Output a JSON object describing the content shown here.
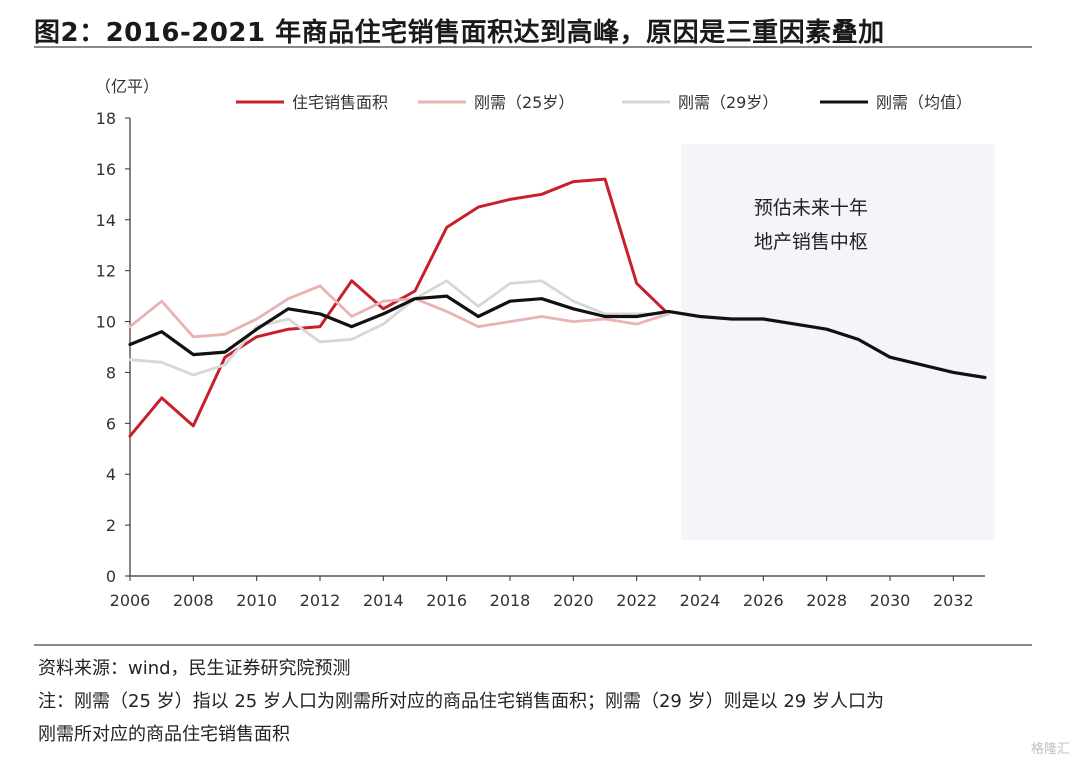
{
  "title": "图2：2016-2021 年商品住宅销售面积达到高峰，原因是三重因素叠加",
  "chart_data": {
    "type": "line",
    "unit_label": "（亿平）",
    "ylim": [
      0,
      18
    ],
    "yticks": [
      0,
      2,
      4,
      6,
      8,
      10,
      12,
      14,
      16,
      18
    ],
    "xlim": [
      2006,
      2033
    ],
    "xticks": [
      2006,
      2008,
      2010,
      2012,
      2014,
      2016,
      2018,
      2020,
      2022,
      2024,
      2026,
      2028,
      2030,
      2032
    ],
    "grid": false,
    "legend_position": "top",
    "forecast_region": {
      "x_start": 2023.4,
      "x_end": 2033.3,
      "label_lines": [
        "预估未来十年",
        "地产销售中枢"
      ],
      "color": "#f3f5f8"
    },
    "series": [
      {
        "name": "住宅销售面积",
        "color": "#c8202a",
        "x": [
          2006,
          2007,
          2008,
          2009,
          2010,
          2011,
          2012,
          2013,
          2014,
          2015,
          2016,
          2017,
          2018,
          2019,
          2020,
          2021,
          2022,
          2023
        ],
        "y": [
          5.5,
          7.0,
          5.9,
          8.6,
          9.4,
          9.7,
          9.8,
          11.6,
          10.5,
          11.2,
          13.7,
          14.5,
          14.8,
          15.0,
          15.5,
          15.6,
          11.5,
          10.3
        ]
      },
      {
        "name": "刚需（25岁）",
        "color": "#ebb2b2",
        "x": [
          2006,
          2007,
          2008,
          2009,
          2010,
          2011,
          2012,
          2013,
          2014,
          2015,
          2016,
          2017,
          2018,
          2019,
          2020,
          2021,
          2022,
          2023
        ],
        "y": [
          9.8,
          10.8,
          9.4,
          9.5,
          10.1,
          10.9,
          11.4,
          10.2,
          10.8,
          10.9,
          10.4,
          9.8,
          10.0,
          10.2,
          10.0,
          10.1,
          9.9,
          10.3
        ]
      },
      {
        "name": "刚需（29岁）",
        "color": "#d7d7d7",
        "x": [
          2006,
          2007,
          2008,
          2009,
          2010,
          2011,
          2012,
          2013,
          2014,
          2015,
          2016,
          2017,
          2018,
          2019,
          2020,
          2021,
          2022,
          2023
        ],
        "y": [
          8.5,
          8.4,
          7.9,
          8.3,
          9.8,
          10.1,
          9.2,
          9.3,
          9.9,
          10.9,
          11.6,
          10.6,
          11.5,
          11.6,
          10.8,
          10.3,
          10.3,
          10.3
        ]
      },
      {
        "name": "刚需（均值）",
        "color": "#111111",
        "x": [
          2006,
          2007,
          2008,
          2009,
          2010,
          2011,
          2012,
          2013,
          2014,
          2015,
          2016,
          2017,
          2018,
          2019,
          2020,
          2021,
          2022,
          2023,
          2024,
          2025,
          2026,
          2027,
          2028,
          2029,
          2030,
          2031,
          2032,
          2033
        ],
        "y": [
          9.1,
          9.6,
          8.7,
          8.8,
          9.7,
          10.5,
          10.3,
          9.8,
          10.3,
          10.9,
          11.0,
          10.2,
          10.8,
          10.9,
          10.5,
          10.2,
          10.2,
          10.4,
          10.2,
          10.1,
          10.1,
          9.9,
          9.7,
          9.3,
          8.6,
          8.3,
          8.0,
          7.8
        ]
      }
    ]
  },
  "notes": {
    "source": "资料来源：wind，民生证券研究院预测",
    "note_line1": "注：刚需（25 岁）指以 25 岁人口为刚需所对应的商品住宅销售面积；刚需（29 岁）则是以 29 岁人口为",
    "note_line2": "刚需所对应的商品住宅销售面积"
  },
  "watermark": "格隆汇"
}
